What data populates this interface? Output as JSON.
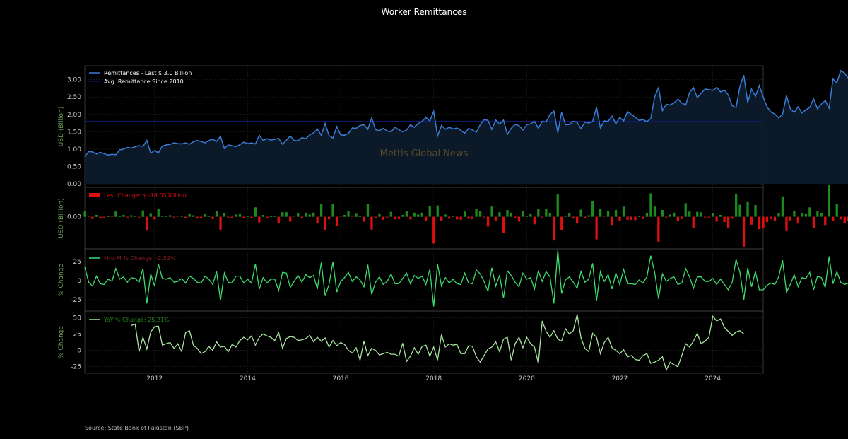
{
  "colors": {
    "background": "#000000",
    "remittance": "#3a7bd5",
    "avg": "#101a66",
    "pos": "#1e8a1e",
    "neg": "#dd0f0f",
    "mom": "#3ddc6e",
    "yoy": "#a8e6a0",
    "watermark": "#5a4a2a"
  },
  "chart_data": [
    {
      "panel": "remittances",
      "type": "area",
      "title": "Worker Remittances",
      "ylabel": "USD (Billion)",
      "ylim": [
        -0.1,
        3.4
      ],
      "yticks": [
        "0.00",
        "0.50",
        "1.00",
        "1.50",
        "2.00",
        "2.50",
        "3.00"
      ],
      "legend": [
        "Remittances - Last $ 3.0 Billion",
        "Avg. Remittance Since 2010"
      ],
      "legend_placement": "top-left",
      "x_start": "2010-07",
      "x_end": "2025-02",
      "xticks": [
        "2012",
        "2014",
        "2016",
        "2018",
        "2020",
        "2022",
        "2024"
      ],
      "avg_value": 1.8,
      "watermark": "Mettis Global News",
      "series": [
        {
          "name": "Remittances",
          "values": [
            0.79,
            0.93,
            0.92,
            0.86,
            0.91,
            0.87,
            0.83,
            0.85,
            0.84,
            0.98,
            1.0,
            1.05,
            1.03,
            1.07,
            1.1,
            1.08,
            1.25,
            0.88,
            0.96,
            0.89,
            1.09,
            1.12,
            1.14,
            1.18,
            1.16,
            1.15,
            1.18,
            1.14,
            1.21,
            1.25,
            1.22,
            1.18,
            1.25,
            1.28,
            1.22,
            1.37,
            1.02,
            1.12,
            1.1,
            1.07,
            1.13,
            1.2,
            1.16,
            1.18,
            1.15,
            1.4,
            1.25,
            1.3,
            1.26,
            1.28,
            1.31,
            1.14,
            1.26,
            1.38,
            1.25,
            1.24,
            1.33,
            1.3,
            1.41,
            1.47,
            1.58,
            1.4,
            1.74,
            1.39,
            1.32,
            1.65,
            1.41,
            1.4,
            1.45,
            1.61,
            1.6,
            1.68,
            1.7,
            1.57,
            1.9,
            1.56,
            1.53,
            1.6,
            1.52,
            1.5,
            1.63,
            1.56,
            1.5,
            1.55,
            1.7,
            1.63,
            1.74,
            1.8,
            1.91,
            1.81,
            2.09,
            1.38,
            1.68,
            1.57,
            1.63,
            1.58,
            1.61,
            1.54,
            1.46,
            1.6,
            1.55,
            1.49,
            1.7,
            1.85,
            1.83,
            1.57,
            1.84,
            1.72,
            1.84,
            1.42,
            1.6,
            1.71,
            1.68,
            1.55,
            1.7,
            1.73,
            1.8,
            1.6,
            1.8,
            1.78,
            2.0,
            2.1,
            1.47,
            2.06,
            1.7,
            1.71,
            1.8,
            1.77,
            1.59,
            1.78,
            1.75,
            1.79,
            2.21,
            1.61,
            1.81,
            1.8,
            1.95,
            1.73,
            1.91,
            1.81,
            2.08,
            2.0,
            1.92,
            1.83,
            1.85,
            1.79,
            1.88,
            2.5,
            2.77,
            2.11,
            2.29,
            2.27,
            2.33,
            2.44,
            2.33,
            2.27,
            2.63,
            2.77,
            2.48,
            2.61,
            2.73,
            2.71,
            2.69,
            2.78,
            2.65,
            2.7,
            2.56,
            2.25,
            2.2,
            2.81,
            3.13,
            2.34,
            2.73,
            2.52,
            2.83,
            2.5,
            2.21,
            2.07,
            2.01,
            1.9,
            2.0,
            2.54,
            2.16,
            2.06,
            2.22,
            2.04,
            2.13,
            2.2,
            2.45,
            2.16,
            2.3,
            2.4,
            2.18,
            3.02,
            2.91,
            3.26,
            3.19,
            3.02,
            2.92,
            2.86,
            3.11,
            2.92,
            3.09,
            3.0
          ]
        }
      ]
    },
    {
      "panel": "last_change",
      "type": "bar",
      "ylabel": "USD (Billion)",
      "ylim": [
        -0.85,
        0.78
      ],
      "yticks": [
        "0.00"
      ],
      "legend": [
        "Last Change: $ -78.03 Million"
      ],
      "legend_placement": "top-left",
      "series": [
        {
          "name": "Change",
          "values": [
            0.14,
            -0.01,
            -0.06,
            0.05,
            -0.04,
            -0.04,
            0.02,
            -0.01,
            0.14,
            0.02,
            0.05,
            -0.02,
            0.04,
            0.03,
            -0.02,
            0.17,
            -0.37,
            0.08,
            -0.07,
            0.2,
            0.03,
            0.02,
            0.04,
            -0.02,
            -0.01,
            0.03,
            -0.04,
            0.07,
            0.04,
            -0.03,
            -0.04,
            0.07,
            0.03,
            -0.06,
            0.15,
            -0.35,
            0.1,
            -0.02,
            -0.03,
            0.06,
            0.07,
            -0.04,
            0.02,
            -0.03,
            0.25,
            -0.15,
            0.05,
            -0.04,
            0.02,
            0.03,
            -0.17,
            0.12,
            0.12,
            -0.13,
            -0.01,
            0.09,
            -0.03,
            0.11,
            0.06,
            0.11,
            -0.18,
            0.34,
            -0.35,
            -0.07,
            0.33,
            -0.24,
            -0.01,
            0.05,
            0.16,
            -0.01,
            0.08,
            0.02,
            -0.13,
            0.33,
            -0.34,
            -0.03,
            0.07,
            -0.08,
            -0.02,
            0.13,
            -0.07,
            -0.06,
            0.05,
            0.15,
            -0.07,
            0.11,
            0.06,
            0.11,
            -0.1,
            0.28,
            -0.71,
            0.3,
            -0.11,
            0.06,
            -0.05,
            0.03,
            -0.07,
            -0.08,
            0.14,
            -0.05,
            -0.06,
            0.21,
            0.15,
            -0.02,
            -0.26,
            0.27,
            -0.12,
            0.12,
            -0.42,
            0.18,
            0.11,
            -0.03,
            -0.13,
            0.15,
            0.03,
            0.07,
            -0.2,
            0.2,
            -0.02,
            0.22,
            0.1,
            -0.63,
            0.59,
            -0.36,
            0.01,
            0.09,
            -0.03,
            -0.18,
            0.19,
            -0.03,
            0.04,
            0.42,
            -0.6,
            0.2,
            -0.01,
            0.15,
            -0.22,
            0.18,
            -0.1,
            0.27,
            -0.08,
            -0.08,
            -0.09,
            0.02,
            -0.06,
            0.09,
            0.62,
            0.27,
            -0.66,
            0.18,
            -0.02,
            0.06,
            0.11,
            -0.11,
            -0.06,
            0.36,
            0.14,
            -0.29,
            0.13,
            0.12,
            -0.02,
            -0.02,
            0.09,
            -0.13,
            0.05,
            -0.14,
            -0.31,
            -0.05,
            0.61,
            0.32,
            -0.79,
            0.39,
            -0.21,
            0.31,
            -0.33,
            -0.29,
            -0.14,
            -0.06,
            -0.11,
            0.1,
            0.54,
            -0.38,
            -0.1,
            0.16,
            -0.18,
            0.09,
            0.07,
            0.25,
            -0.29,
            0.14,
            0.1,
            -0.22,
            0.84,
            -0.11,
            0.35,
            -0.07,
            -0.17,
            -0.1,
            -0.06,
            0.25,
            -0.19,
            0.17,
            -0.08
          ]
        }
      ]
    },
    {
      "panel": "mom",
      "type": "line",
      "ylabel": "% Change",
      "ylim": [
        -40,
        42
      ],
      "yticks": [
        "25",
        "0",
        "-25"
      ],
      "legend": [
        "M-o-M % Change: -2.52%"
      ],
      "legend_placement": "top-left",
      "series": [
        {
          "name": "M-o-M % Change",
          "values": [
            18,
            -2,
            -7,
            6,
            -4,
            -5,
            2,
            -1,
            16,
            2,
            5,
            -2,
            4,
            3,
            -2,
            16,
            -30,
            9,
            -7,
            22,
            3,
            2,
            4,
            -2,
            -1,
            3,
            -3,
            6,
            3,
            -2,
            -3,
            6,
            2,
            -5,
            12,
            -26,
            10,
            -2,
            -3,
            6,
            6,
            -3,
            2,
            -3,
            22,
            -11,
            4,
            -3,
            2,
            2,
            -13,
            11,
            10,
            -9,
            -1,
            7,
            -2,
            8,
            4,
            7,
            -11,
            24,
            -20,
            -5,
            25,
            -15,
            -1,
            4,
            11,
            -1,
            5,
            1,
            -8,
            21,
            -18,
            -2,
            5,
            -5,
            -1,
            9,
            -4,
            -4,
            3,
            10,
            -4,
            7,
            3,
            6,
            -5,
            15,
            -34,
            22,
            -7,
            4,
            -3,
            2,
            -4,
            -5,
            10,
            -3,
            -4,
            14,
            9,
            -1,
            -14,
            17,
            -7,
            7,
            -23,
            13,
            7,
            -2,
            -8,
            10,
            2,
            4,
            -11,
            13,
            -1,
            12,
            5,
            -30,
            40,
            -17,
            1,
            5,
            -2,
            -10,
            12,
            -2,
            2,
            23,
            -27,
            12,
            -1,
            8,
            -11,
            10,
            -5,
            15,
            -4,
            -4,
            -5,
            1,
            -3,
            5,
            33,
            11,
            -24,
            9,
            -1,
            3,
            5,
            -5,
            -3,
            16,
            5,
            -10,
            5,
            5,
            -1,
            -1,
            3,
            -5,
            2,
            -5,
            -12,
            -2,
            28,
            11,
            -25,
            17,
            -8,
            12,
            -12,
            -12,
            -6,
            -3,
            -5,
            5,
            27,
            -15,
            -5,
            8,
            -8,
            4,
            3,
            11,
            -12,
            6,
            4,
            -9,
            32,
            -4,
            12,
            -2,
            -5,
            -3,
            -2,
            9,
            -6,
            6,
            -3
          ]
        }
      ]
    },
    {
      "panel": "yoy",
      "type": "line",
      "ylabel": "% Change",
      "ylim": [
        -35,
        60
      ],
      "yticks": [
        "50",
        "25",
        "0",
        "-25"
      ],
      "legend": [
        "YoY % Change: 25.21%"
      ],
      "legend_placement": "top-left",
      "series": [
        {
          "name": "YoY % Change",
          "values": [
            null,
            null,
            null,
            null,
            null,
            null,
            null,
            null,
            null,
            null,
            null,
            null,
            38,
            40,
            -2,
            20,
            2,
            28,
            36,
            37,
            8,
            10,
            12,
            3,
            10,
            -2,
            27,
            30,
            8,
            3,
            -5,
            -2,
            6,
            0,
            13,
            5,
            6,
            -2,
            9,
            5,
            15,
            20,
            16,
            22,
            8,
            20,
            25,
            22,
            20,
            15,
            27,
            3,
            18,
            21,
            20,
            15,
            16,
            18,
            23,
            13,
            20,
            14,
            19,
            5,
            15,
            7,
            12,
            9,
            0,
            -4,
            4,
            -15,
            14,
            -8,
            3,
            0,
            -7,
            -5,
            -3,
            -6,
            -6,
            -9,
            11,
            -17,
            -9,
            4,
            -6,
            6,
            8,
            -9,
            5,
            -15,
            24,
            5,
            10,
            8,
            9,
            -5,
            -5,
            7,
            6,
            -10,
            -18,
            -8,
            2,
            5,
            13,
            -2,
            17,
            20,
            -15,
            10,
            20,
            4,
            20,
            10,
            5,
            -20,
            45,
            29,
            20,
            30,
            17,
            14,
            33,
            25,
            30,
            55,
            19,
            3,
            -2,
            26,
            20,
            -5,
            12,
            20,
            4,
            0,
            -5,
            1,
            -10,
            -8,
            -14,
            -15,
            -8,
            -5,
            -20,
            -18,
            -15,
            -10,
            -30,
            -18,
            -22,
            -25,
            -8,
            10,
            5,
            14,
            26,
            10,
            14,
            20,
            52,
            45,
            48,
            35,
            29,
            23,
            28,
            30,
            25
          ]
        }
      ]
    }
  ],
  "source": "Source: State Bank of Pakistan (SBP)"
}
